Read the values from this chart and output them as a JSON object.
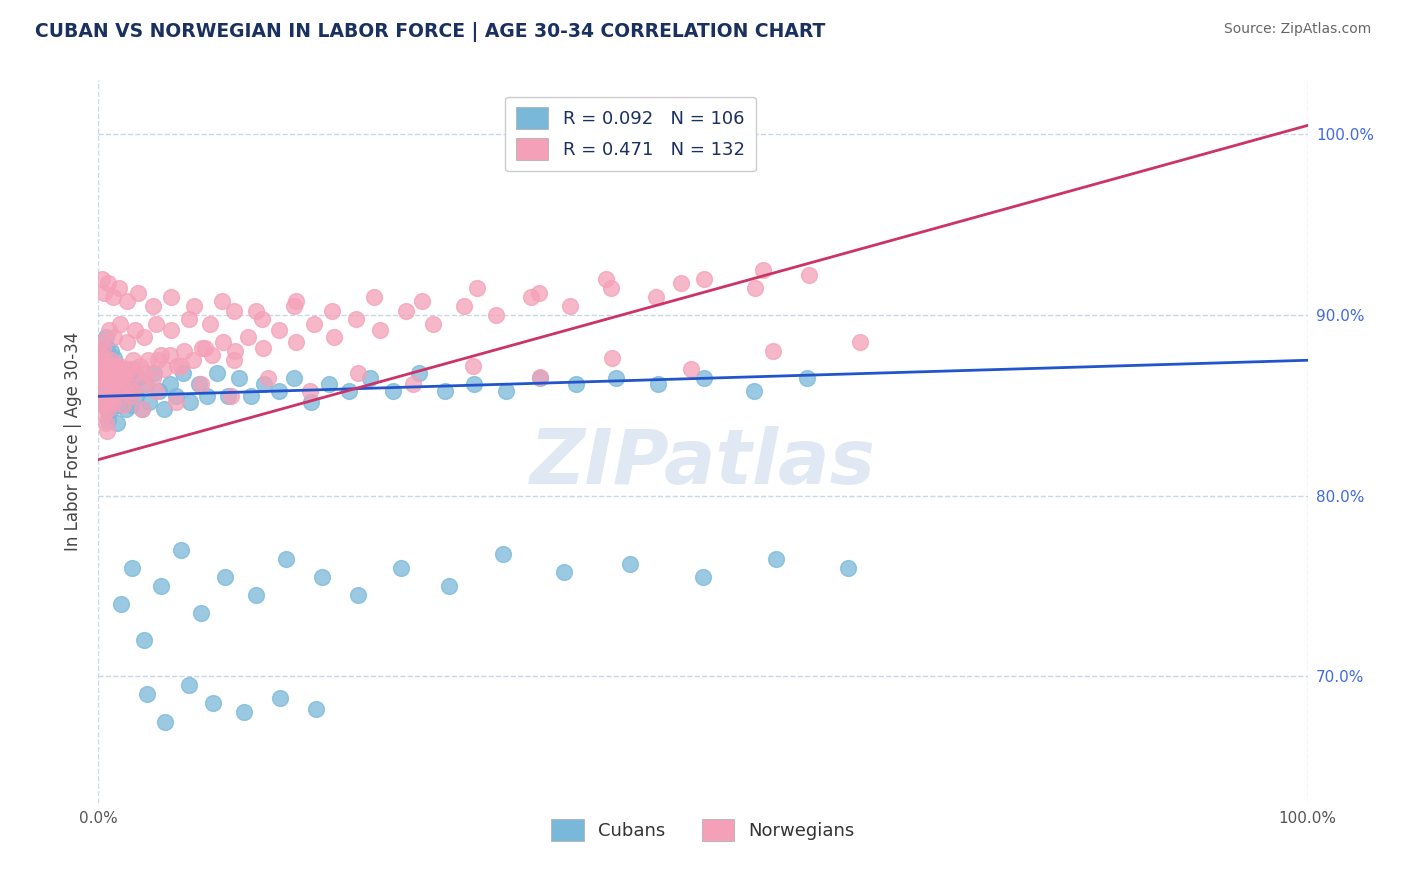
{
  "title": "CUBAN VS NORWEGIAN IN LABOR FORCE | AGE 30-34 CORRELATION CHART",
  "source_text": "Source: ZipAtlas.com",
  "ylabel_label": "In Labor Force | Age 30-34",
  "cubans_color": "#7ab8d9",
  "norwegians_color": "#f4a0b8",
  "trendline_cuban_color": "#2255cc",
  "trendline_norwegian_color": "#cc3366",
  "watermark": "ZIPatlas",
  "background_color": "#ffffff",
  "grid_color": "#c8d8ea",
  "cuban_R": 0.092,
  "cuban_N": 106,
  "norwegian_R": 0.471,
  "norwegian_N": 132,
  "xlim": [
    0.0,
    1.0
  ],
  "ylim": [
    0.63,
    1.03
  ],
  "yticks": [
    0.7,
    0.8,
    0.9,
    1.0
  ],
  "cuban_scatter_x": [
    0.002,
    0.003,
    0.003,
    0.004,
    0.004,
    0.004,
    0.005,
    0.005,
    0.005,
    0.006,
    0.006,
    0.006,
    0.007,
    0.007,
    0.007,
    0.008,
    0.008,
    0.008,
    0.009,
    0.009,
    0.01,
    0.01,
    0.01,
    0.011,
    0.011,
    0.012,
    0.012,
    0.013,
    0.013,
    0.014,
    0.015,
    0.015,
    0.016,
    0.017,
    0.018,
    0.019,
    0.02,
    0.021,
    0.022,
    0.023,
    0.025,
    0.027,
    0.029,
    0.031,
    0.033,
    0.036,
    0.039,
    0.042,
    0.046,
    0.05,
    0.054,
    0.059,
    0.064,
    0.07,
    0.076,
    0.083,
    0.09,
    0.098,
    0.107,
    0.116,
    0.126,
    0.137,
    0.149,
    0.162,
    0.176,
    0.191,
    0.207,
    0.225,
    0.244,
    0.265,
    0.287,
    0.311,
    0.337,
    0.365,
    0.395,
    0.428,
    0.463,
    0.501,
    0.542,
    0.586,
    0.019,
    0.028,
    0.038,
    0.052,
    0.068,
    0.085,
    0.105,
    0.13,
    0.155,
    0.185,
    0.215,
    0.25,
    0.29,
    0.335,
    0.385,
    0.44,
    0.5,
    0.56,
    0.62,
    0.04,
    0.055,
    0.075,
    0.095,
    0.12,
    0.15,
    0.18
  ],
  "cuban_scatter_y": [
    0.87,
    0.875,
    0.86,
    0.882,
    0.855,
    0.868,
    0.878,
    0.862,
    0.85,
    0.888,
    0.87,
    0.855,
    0.882,
    0.865,
    0.848,
    0.876,
    0.858,
    0.842,
    0.868,
    0.852,
    0.88,
    0.865,
    0.848,
    0.872,
    0.856,
    0.868,
    0.85,
    0.876,
    0.858,
    0.87,
    0.855,
    0.84,
    0.865,
    0.85,
    0.87,
    0.855,
    0.868,
    0.852,
    0.865,
    0.848,
    0.862,
    0.85,
    0.87,
    0.855,
    0.865,
    0.848,
    0.862,
    0.852,
    0.868,
    0.858,
    0.848,
    0.862,
    0.855,
    0.868,
    0.852,
    0.862,
    0.855,
    0.868,
    0.855,
    0.865,
    0.855,
    0.862,
    0.858,
    0.865,
    0.852,
    0.862,
    0.858,
    0.865,
    0.858,
    0.868,
    0.858,
    0.862,
    0.858,
    0.865,
    0.862,
    0.865,
    0.862,
    0.865,
    0.858,
    0.865,
    0.74,
    0.76,
    0.72,
    0.75,
    0.77,
    0.735,
    0.755,
    0.745,
    0.765,
    0.755,
    0.745,
    0.76,
    0.75,
    0.768,
    0.758,
    0.762,
    0.755,
    0.765,
    0.76,
    0.69,
    0.675,
    0.695,
    0.685,
    0.68,
    0.688,
    0.682
  ],
  "norwegian_scatter_x": [
    0.001,
    0.002,
    0.002,
    0.003,
    0.003,
    0.004,
    0.004,
    0.004,
    0.005,
    0.005,
    0.005,
    0.006,
    0.006,
    0.006,
    0.007,
    0.007,
    0.007,
    0.008,
    0.008,
    0.009,
    0.009,
    0.01,
    0.01,
    0.011,
    0.011,
    0.012,
    0.012,
    0.013,
    0.014,
    0.015,
    0.016,
    0.017,
    0.018,
    0.019,
    0.02,
    0.022,
    0.024,
    0.026,
    0.028,
    0.031,
    0.034,
    0.037,
    0.041,
    0.045,
    0.049,
    0.054,
    0.059,
    0.065,
    0.071,
    0.078,
    0.086,
    0.094,
    0.103,
    0.113,
    0.124,
    0.136,
    0.149,
    0.163,
    0.178,
    0.195,
    0.213,
    0.233,
    0.254,
    0.277,
    0.302,
    0.329,
    0.358,
    0.39,
    0.424,
    0.461,
    0.501,
    0.543,
    0.588,
    0.009,
    0.013,
    0.018,
    0.024,
    0.03,
    0.038,
    0.048,
    0.06,
    0.075,
    0.092,
    0.112,
    0.135,
    0.162,
    0.193,
    0.228,
    0.268,
    0.313,
    0.364,
    0.42,
    0.482,
    0.55,
    0.007,
    0.01,
    0.015,
    0.021,
    0.029,
    0.039,
    0.052,
    0.068,
    0.088,
    0.112,
    0.02,
    0.027,
    0.036,
    0.048,
    0.064,
    0.085,
    0.11,
    0.14,
    0.175,
    0.215,
    0.26,
    0.31,
    0.365,
    0.425,
    0.49,
    0.558,
    0.63,
    0.003,
    0.005,
    0.008,
    0.012,
    0.017,
    0.024,
    0.033,
    0.045,
    0.06,
    0.079,
    0.102,
    0.13,
    0.163
  ],
  "norwegian_scatter_y": [
    0.878,
    0.865,
    0.885,
    0.87,
    0.858,
    0.882,
    0.866,
    0.85,
    0.876,
    0.86,
    0.845,
    0.872,
    0.856,
    0.84,
    0.868,
    0.852,
    0.836,
    0.865,
    0.848,
    0.87,
    0.854,
    0.875,
    0.858,
    0.872,
    0.855,
    0.87,
    0.852,
    0.868,
    0.862,
    0.87,
    0.858,
    0.866,
    0.872,
    0.86,
    0.868,
    0.87,
    0.862,
    0.87,
    0.858,
    0.868,
    0.872,
    0.862,
    0.875,
    0.865,
    0.875,
    0.87,
    0.878,
    0.872,
    0.88,
    0.875,
    0.882,
    0.878,
    0.885,
    0.88,
    0.888,
    0.882,
    0.892,
    0.885,
    0.895,
    0.888,
    0.898,
    0.892,
    0.902,
    0.895,
    0.905,
    0.9,
    0.91,
    0.905,
    0.915,
    0.91,
    0.92,
    0.915,
    0.922,
    0.892,
    0.888,
    0.895,
    0.885,
    0.892,
    0.888,
    0.895,
    0.892,
    0.898,
    0.895,
    0.902,
    0.898,
    0.905,
    0.902,
    0.91,
    0.908,
    0.915,
    0.912,
    0.92,
    0.918,
    0.925,
    0.868,
    0.862,
    0.872,
    0.865,
    0.875,
    0.868,
    0.878,
    0.872,
    0.882,
    0.875,
    0.85,
    0.855,
    0.848,
    0.858,
    0.852,
    0.862,
    0.855,
    0.865,
    0.858,
    0.868,
    0.862,
    0.872,
    0.866,
    0.876,
    0.87,
    0.88,
    0.885,
    0.92,
    0.912,
    0.918,
    0.91,
    0.915,
    0.908,
    0.912,
    0.905,
    0.91,
    0.905,
    0.908,
    0.902,
    0.908
  ]
}
